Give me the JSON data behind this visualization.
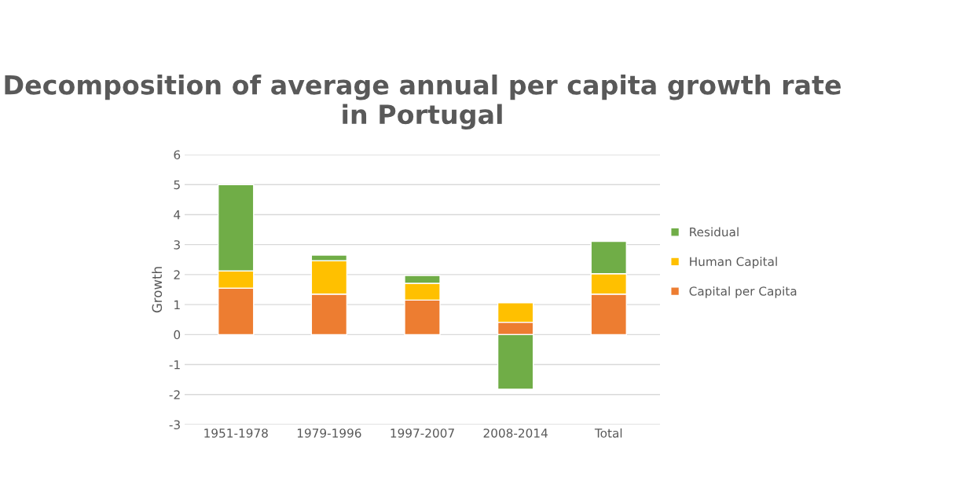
{
  "chart_data": {
    "type": "bar",
    "title": "Decomposition of average annual per capita growth rate in Portugal",
    "ylabel": "Growth",
    "categories": [
      "1951-1978",
      "1979-1996",
      "1997-2007",
      "2008-2014",
      "Total"
    ],
    "stacked": true,
    "series": [
      {
        "name": "Capital per Capita",
        "color": "#ed7d31",
        "values": [
          1.55,
          1.35,
          1.15,
          0.41,
          1.35
        ]
      },
      {
        "name": "Human Capital",
        "color": "#ffc000",
        "values": [
          0.57,
          1.11,
          0.56,
          0.65,
          0.68
        ]
      },
      {
        "name": "Residual",
        "color": "#70ad47",
        "values": [
          2.88,
          0.19,
          0.26,
          -1.82,
          1.08
        ]
      }
    ],
    "ylim": [
      -3,
      6
    ],
    "yticks": [
      -3,
      -2,
      -1,
      0,
      1,
      2,
      3,
      4,
      5,
      6
    ],
    "grid": "y",
    "legend": "right"
  }
}
